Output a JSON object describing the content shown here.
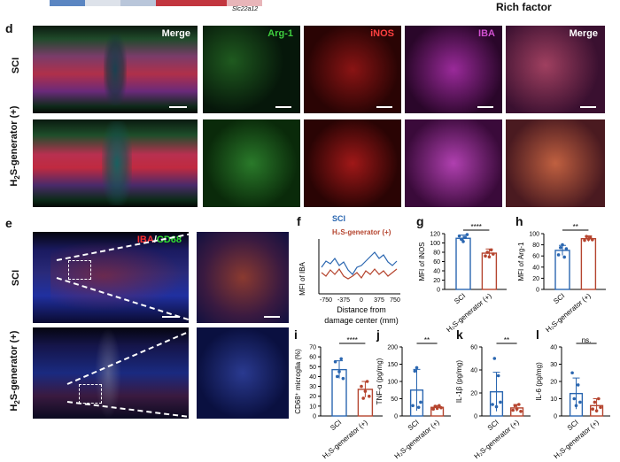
{
  "top_strip": {
    "gene_label": "Slc22a12",
    "axis_label": "Rich factor",
    "color_swatches": [
      "#5b86c2",
      "#b9c6da",
      "#d7dce6",
      "#c2363f",
      "#d98a8f",
      "#e8b5b9"
    ]
  },
  "panel_d": {
    "letter": "d",
    "rows": [
      "SCI",
      "H2S-generator (+)"
    ],
    "columns": [
      "Merge",
      "Arg-1",
      "iNOS",
      "IBA",
      "Merge"
    ],
    "column_colors": [
      "#ffffff",
      "#3fcf3f",
      "#ff4040",
      "#d050d0",
      "#ffffff"
    ]
  },
  "panel_e": {
    "letter": "e",
    "rows": [
      "SCI",
      "H2S-generator (+)"
    ],
    "stain_label_a": "IBA",
    "stain_sep": "/",
    "stain_label_b": "CD68"
  },
  "panel_f": {
    "letter": "f",
    "ylabel": "MFI of IBA",
    "xlabel_line1": "Distance from",
    "xlabel_line2": "damage center (mm)",
    "legend_sci": "SCI",
    "legend_h2s": "H₂S-generator (+)",
    "xticks": [
      "-750",
      "-375",
      "0",
      "375",
      "750"
    ]
  },
  "panel_g": {
    "letter": "g",
    "ylabel": "MFI of iNOS",
    "yticks": [
      "0",
      "20",
      "40",
      "60",
      "80",
      "100",
      "120"
    ],
    "sig": "****"
  },
  "panel_h": {
    "letter": "h",
    "ylabel": "MFI of Arg-1",
    "yticks": [
      "0",
      "20",
      "40",
      "60",
      "80",
      "100"
    ],
    "sig": "**"
  },
  "panel_i": {
    "letter": "i",
    "ylabel": "CD68⁺ microglia (%)",
    "yticks": [
      "0",
      "10",
      "20",
      "30",
      "40",
      "50",
      "60",
      "70"
    ],
    "sig": "****"
  },
  "panel_j": {
    "letter": "j",
    "ylabel": "TNF-α (pg/mg)",
    "yticks": [
      "0",
      "50",
      "100",
      "150",
      "200"
    ],
    "sig": "**"
  },
  "panel_k": {
    "letter": "k",
    "ylabel": "IL-1β (pg/mg)",
    "yticks": [
      "0",
      "20",
      "40",
      "60"
    ],
    "sig": "**"
  },
  "panel_l": {
    "letter": "l",
    "ylabel": "IL-6 (pg/mg)",
    "yticks": [
      "0",
      "10",
      "20",
      "30",
      "40"
    ],
    "sig": "ns."
  },
  "groups": [
    "SCI",
    "H₂S-generator (+)"
  ],
  "colors": {
    "sci": "#2a66b0",
    "h2s": "#b5442e"
  },
  "chart_data": [
    {
      "type": "line",
      "panel": "f",
      "ylabel": "MFI of IBA",
      "xlabel": "Distance from damage center (mm)",
      "xlim": [
        -750,
        750
      ],
      "series": [
        {
          "name": "SCI"
        },
        {
          "name": "H₂S-generator (+)"
        }
      ]
    },
    {
      "type": "bar",
      "panel": "g",
      "categories": [
        "SCI",
        "H₂S-generator (+)"
      ],
      "values": [
        110,
        78
      ],
      "errors": [
        7,
        9
      ],
      "ylim": [
        0,
        120
      ],
      "ylabel": "MFI of iNOS",
      "points": [
        [
          115,
          108,
          103,
          112,
          118
        ],
        [
          72,
          80,
          70,
          85,
          76
        ]
      ]
    },
    {
      "type": "bar",
      "panel": "h",
      "categories": [
        "SCI",
        "H₂S-generator (+)"
      ],
      "values": [
        70,
        91
      ],
      "errors": [
        9,
        5
      ],
      "ylim": [
        0,
        100
      ],
      "ylabel": "MFI of Arg-1",
      "points": [
        [
          62,
          75,
          80,
          58,
          73
        ],
        [
          88,
          95,
          90,
          93,
          89
        ]
      ]
    },
    {
      "type": "bar",
      "panel": "i",
      "categories": [
        "SCI",
        "H₂S-generator (+)"
      ],
      "values": [
        47,
        27
      ],
      "errors": [
        9,
        8
      ],
      "ylim": [
        0,
        70
      ],
      "ylabel": "CD68⁺ microglia (%)",
      "points": [
        [
          55,
          40,
          45,
          58,
          38
        ],
        [
          30,
          18,
          25,
          35,
          20
        ]
      ]
    },
    {
      "type": "bar",
      "panel": "j",
      "categories": [
        "SCI",
        "H₂S-generator (+)"
      ],
      "values": [
        75,
        25
      ],
      "errors": [
        60,
        5
      ],
      "ylim": [
        0,
        200
      ],
      "ylabel": "TNF-α (pg/mg)",
      "points": [
        [
          30,
          130,
          140,
          25,
          40
        ],
        [
          20,
          28,
          22,
          30,
          24
        ]
      ]
    },
    {
      "type": "bar",
      "panel": "k",
      "categories": [
        "SCI",
        "H₂S-generator (+)"
      ],
      "values": [
        21,
        7
      ],
      "errors": [
        17,
        3
      ],
      "ylim": [
        0,
        60
      ],
      "ylabel": "IL-1β (pg/mg)",
      "points": [
        [
          10,
          50,
          8,
          35,
          12
        ],
        [
          5,
          9,
          6,
          10,
          4
        ]
      ]
    },
    {
      "type": "bar",
      "panel": "l",
      "categories": [
        "SCI",
        "H₂S-generator (+)"
      ],
      "values": [
        13,
        6
      ],
      "errors": [
        9,
        4
      ],
      "ylim": [
        0,
        40
      ],
      "ylabel": "IL-6 (pg/mg)",
      "points": [
        [
          25,
          10,
          6,
          18,
          8
        ],
        [
          4,
          8,
          3,
          10,
          5
        ]
      ]
    }
  ]
}
